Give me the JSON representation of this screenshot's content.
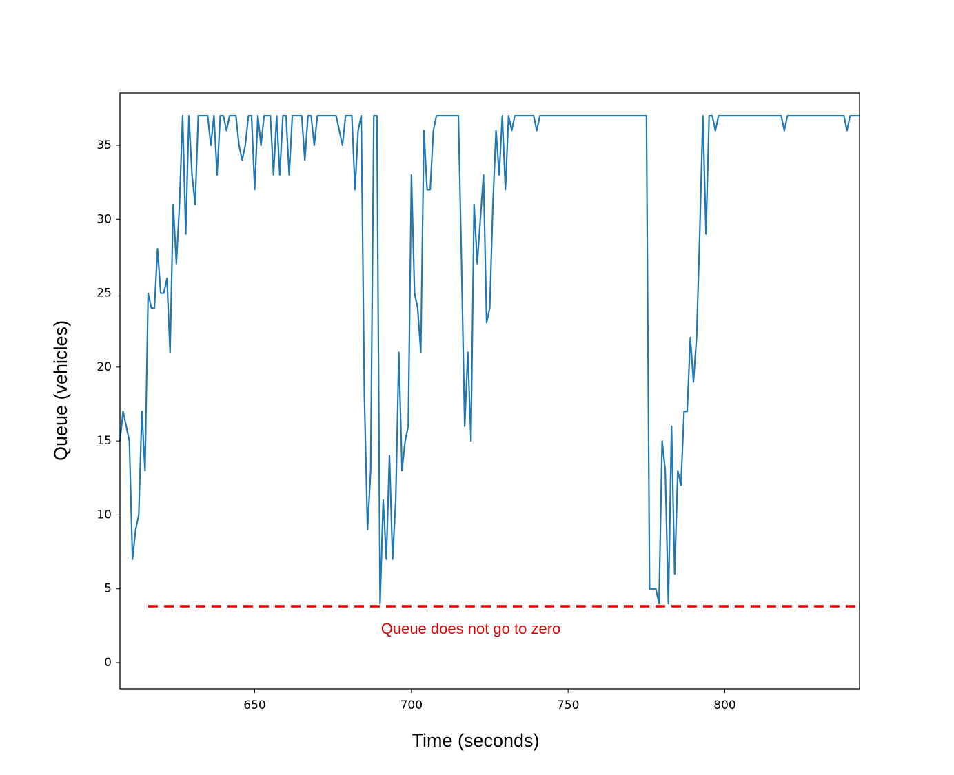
{
  "chart_data": {
    "type": "line",
    "xlabel": "Time (seconds)",
    "ylabel": "Queue (vehicles)",
    "color": "#1f77b4",
    "x": [
      607,
      608,
      610,
      611,
      612,
      613,
      614,
      615,
      616,
      617,
      618,
      619,
      620,
      621,
      622,
      623,
      624,
      625,
      626,
      627,
      628,
      629,
      630,
      631,
      632,
      635,
      636,
      637,
      638,
      639,
      640,
      641,
      642,
      644,
      645,
      646,
      647,
      648,
      649,
      650,
      651,
      652,
      653,
      655,
      656,
      657,
      658,
      659,
      660,
      661,
      662,
      665,
      666,
      667,
      668,
      669,
      670,
      676,
      678,
      679,
      681,
      682,
      683,
      684,
      685,
      686,
      687,
      688,
      689,
      690,
      691,
      692,
      693,
      694,
      695,
      696,
      697,
      698,
      699,
      700,
      701,
      702,
      703,
      704,
      705,
      706,
      707,
      708,
      715,
      716,
      717,
      718,
      719,
      720,
      721,
      722,
      723,
      724,
      725,
      726,
      727,
      728,
      729,
      730,
      731,
      732,
      733,
      739,
      740,
      741,
      775,
      776,
      778,
      779,
      780,
      781,
      782,
      783,
      784,
      785,
      786,
      787,
      788,
      789,
      790,
      791,
      792,
      793,
      794,
      795,
      796,
      797,
      798,
      818,
      819,
      820,
      838,
      839,
      840,
      843
    ],
    "values": [
      15,
      17,
      15,
      7,
      9,
      10,
      17,
      13,
      25,
      24,
      24,
      28,
      25,
      25,
      26,
      21,
      31,
      27,
      31,
      37,
      29,
      37,
      33,
      31,
      37,
      37,
      35,
      37,
      33,
      37,
      37,
      36,
      37,
      37,
      35,
      34,
      35,
      37,
      37,
      32,
      37,
      35,
      37,
      37,
      33,
      37,
      33,
      37,
      37,
      33,
      37,
      37,
      34,
      37,
      37,
      35,
      37,
      37,
      35,
      37,
      37,
      32,
      36,
      37,
      18,
      9,
      13,
      37,
      37,
      4,
      11,
      7,
      14,
      7,
      11,
      21,
      13,
      15,
      16,
      33,
      25,
      24,
      21,
      36,
      32,
      32,
      36,
      37,
      37,
      27,
      16,
      21,
      15,
      31,
      27,
      30,
      33,
      23,
      24,
      31,
      36,
      33,
      37,
      32,
      37,
      36,
      37,
      37,
      36,
      37,
      37,
      5,
      5,
      4,
      15,
      13,
      4,
      16,
      6,
      13,
      12,
      17,
      17,
      22,
      19,
      22,
      29,
      37,
      29,
      37,
      37,
      36,
      37,
      37,
      36,
      37,
      37,
      36,
      37,
      37
    ],
    "xlim": [
      607,
      843
    ],
    "ylim": [
      -1.77,
      38.54
    ],
    "xticks": [
      650,
      700,
      750,
      800
    ],
    "yticks": [
      0,
      5,
      10,
      15,
      20,
      25,
      30,
      35
    ],
    "annotation": {
      "text": "Queue does not go to zero",
      "y": 3.82,
      "x": [
        616,
        842
      ],
      "color": "#e00000"
    }
  }
}
